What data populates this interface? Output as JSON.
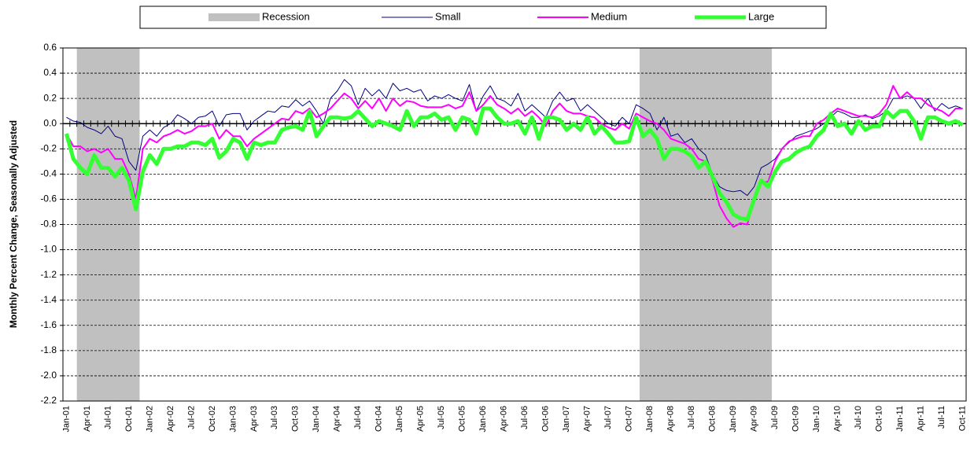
{
  "chart_data": {
    "type": "line",
    "ylabel": "Monthly Percent Change, Seasonally Adjusted",
    "categories": [
      "Jan-01",
      null,
      null,
      "Apr-01",
      null,
      null,
      "Jul-01",
      null,
      null,
      "Oct-01",
      null,
      null,
      "Jan-02",
      null,
      null,
      "Apr-02",
      null,
      null,
      "Jul-02",
      null,
      null,
      "Oct-02",
      null,
      null,
      "Jan-03",
      null,
      null,
      "Apr-03",
      null,
      null,
      "Jul-03",
      null,
      null,
      "Oct-03",
      null,
      null,
      "Jan-04",
      null,
      null,
      "Apr-04",
      null,
      null,
      "Jul-04",
      null,
      null,
      "Oct-04",
      null,
      null,
      "Jan-05",
      null,
      null,
      "Apr-05",
      null,
      null,
      "Jul-05",
      null,
      null,
      "Oct-05",
      null,
      null,
      "Jan-06",
      null,
      null,
      "Apr-06",
      null,
      null,
      "Jul-06",
      null,
      null,
      "Oct-06",
      null,
      null,
      "Jan-07",
      null,
      null,
      "Apr-07",
      null,
      null,
      "Jul-07",
      null,
      null,
      "Oct-07",
      null,
      null,
      "Jan-08",
      null,
      null,
      "Apr-08",
      null,
      null,
      "Jul-08",
      null,
      null,
      "Oct-08",
      null,
      null,
      "Jan-09",
      null,
      null,
      "Apr-09",
      null,
      null,
      "Jul-09",
      null,
      null,
      "Oct-09",
      null,
      null,
      "Jan-10",
      null,
      null,
      "Apr-10",
      null,
      null,
      "Jul-10",
      null,
      null,
      "Oct-10",
      null,
      null,
      "Jan-11",
      null,
      null,
      "Apr-11",
      null,
      null,
      "Jul-11",
      null,
      null,
      "Oct-11"
    ],
    "series": [
      {
        "name": "Recession",
        "type": "bar",
        "color": "#c0c0c0",
        "values": [
          null,
          null,
          0.6,
          0.6,
          0.6,
          0.6,
          0.6,
          0.6,
          0.6,
          0.6,
          0.6,
          null,
          null,
          null,
          null,
          null,
          null,
          null,
          null,
          null,
          null,
          null,
          null,
          null,
          null,
          null,
          null,
          null,
          null,
          null,
          null,
          null,
          null,
          null,
          null,
          null,
          null,
          null,
          null,
          null,
          null,
          null,
          null,
          null,
          null,
          null,
          null,
          null,
          null,
          null,
          null,
          null,
          null,
          null,
          null,
          null,
          null,
          null,
          null,
          null,
          null,
          null,
          null,
          null,
          null,
          null,
          null,
          null,
          null,
          null,
          null,
          null,
          null,
          null,
          null,
          null,
          null,
          null,
          null,
          null,
          null,
          null,
          null,
          0.6,
          0.6,
          0.6,
          0.6,
          0.6,
          0.6,
          0.6,
          0.6,
          0.6,
          0.6,
          0.6,
          0.6,
          0.6,
          0.6,
          0.6,
          0.6,
          0.6,
          0.6,
          0.6,
          null,
          null,
          null,
          null,
          null,
          null,
          null,
          null,
          null,
          null,
          null,
          null,
          null,
          null,
          null,
          null,
          null,
          null,
          null,
          null,
          null,
          null,
          null,
          null,
          null,
          null,
          null,
          null
        ]
      },
      {
        "name": "Small",
        "type": "line",
        "color": "#000080",
        "width": 1,
        "values": [
          0.05,
          0.02,
          0.01,
          -0.03,
          -0.05,
          -0.08,
          -0.02,
          -0.1,
          -0.12,
          -0.3,
          -0.37,
          -0.1,
          -0.05,
          -0.1,
          -0.03,
          0.0,
          0.07,
          0.04,
          0.0,
          0.05,
          0.06,
          0.1,
          -0.02,
          0.07,
          0.08,
          0.08,
          -0.05,
          0.02,
          0.06,
          0.1,
          0.09,
          0.14,
          0.13,
          0.19,
          0.14,
          0.18,
          0.1,
          0.0,
          0.2,
          0.26,
          0.35,
          0.3,
          0.15,
          0.28,
          0.22,
          0.27,
          0.2,
          0.32,
          0.26,
          0.28,
          0.25,
          0.27,
          0.18,
          0.22,
          0.2,
          0.23,
          0.2,
          0.18,
          0.31,
          0.1,
          0.22,
          0.3,
          0.2,
          0.18,
          0.14,
          0.24,
          0.1,
          0.15,
          0.1,
          0.05,
          0.18,
          0.25,
          0.18,
          0.2,
          0.1,
          0.15,
          0.1,
          0.05,
          0.0,
          -0.02,
          0.05,
          0.0,
          0.15,
          0.12,
          0.08,
          -0.05,
          0.05,
          -0.1,
          -0.08,
          -0.15,
          -0.12,
          -0.2,
          -0.25,
          -0.4,
          -0.5,
          -0.53,
          -0.54,
          -0.53,
          -0.57,
          -0.5,
          -0.35,
          -0.32,
          -0.28,
          -0.2,
          -0.15,
          -0.1,
          -0.08,
          -0.06,
          -0.04,
          0.0,
          0.05,
          0.1,
          0.08,
          0.05,
          0.05,
          0.07,
          0.04,
          0.06,
          0.1,
          0.2,
          0.2,
          0.22,
          0.2,
          0.12,
          0.2,
          0.1,
          0.16,
          0.12,
          0.14,
          0.12
        ]
      },
      {
        "name": "Medium",
        "type": "line",
        "color": "#ff00ff",
        "width": 2,
        "values": [
          -0.08,
          -0.18,
          -0.18,
          -0.22,
          -0.2,
          -0.23,
          -0.2,
          -0.28,
          -0.28,
          -0.4,
          -0.6,
          -0.2,
          -0.12,
          -0.15,
          -0.1,
          -0.08,
          -0.05,
          -0.08,
          -0.06,
          -0.02,
          -0.02,
          0.0,
          -0.12,
          -0.05,
          -0.1,
          -0.1,
          -0.18,
          -0.12,
          -0.08,
          -0.04,
          0.0,
          0.04,
          0.03,
          0.1,
          0.08,
          0.12,
          0.05,
          0.08,
          0.12,
          0.18,
          0.24,
          0.2,
          0.12,
          0.18,
          0.12,
          0.2,
          0.1,
          0.2,
          0.14,
          0.18,
          0.17,
          0.14,
          0.13,
          0.13,
          0.13,
          0.15,
          0.12,
          0.14,
          0.25,
          0.1,
          0.15,
          0.22,
          0.15,
          0.12,
          0.08,
          0.12,
          0.06,
          0.1,
          0.05,
          -0.02,
          0.1,
          0.16,
          0.1,
          0.08,
          0.08,
          0.06,
          0.05,
          0.0,
          -0.03,
          -0.05,
          0.0,
          -0.04,
          0.08,
          0.05,
          0.02,
          0.0,
          -0.05,
          -0.12,
          -0.14,
          -0.16,
          -0.2,
          -0.28,
          -0.3,
          -0.45,
          -0.65,
          -0.75,
          -0.82,
          -0.79,
          -0.8,
          -0.6,
          -0.47,
          -0.46,
          -0.3,
          -0.2,
          -0.14,
          -0.12,
          -0.1,
          -0.1,
          0.0,
          0.03,
          0.08,
          0.12,
          0.1,
          0.08,
          0.06,
          0.06,
          0.05,
          0.08,
          0.15,
          0.3,
          0.2,
          0.25,
          0.2,
          0.2,
          0.15,
          0.12,
          0.1,
          0.06,
          0.12,
          0.12
        ]
      },
      {
        "name": "Large",
        "type": "line",
        "color": "#33ff33",
        "width": 5,
        "values": [
          -0.08,
          -0.28,
          -0.35,
          -0.4,
          -0.25,
          -0.35,
          -0.35,
          -0.42,
          -0.35,
          -0.45,
          -0.68,
          -0.38,
          -0.25,
          -0.32,
          -0.2,
          -0.2,
          -0.18,
          -0.18,
          -0.15,
          -0.15,
          -0.17,
          -0.12,
          -0.27,
          -0.22,
          -0.12,
          -0.15,
          -0.28,
          -0.15,
          -0.17,
          -0.15,
          -0.15,
          -0.05,
          -0.03,
          -0.02,
          -0.05,
          0.1,
          -0.1,
          -0.02,
          0.05,
          0.05,
          0.04,
          0.05,
          0.1,
          0.04,
          -0.02,
          0.02,
          0.0,
          -0.02,
          -0.05,
          0.1,
          -0.02,
          0.05,
          0.05,
          0.08,
          0.03,
          0.05,
          -0.05,
          0.05,
          0.03,
          -0.08,
          0.12,
          0.12,
          0.05,
          0.0,
          0.0,
          0.02,
          -0.08,
          0.05,
          -0.12,
          0.05,
          0.05,
          0.03,
          -0.05,
          0.0,
          -0.05,
          0.05,
          -0.08,
          -0.02,
          -0.08,
          -0.15,
          -0.15,
          -0.14,
          0.05,
          -0.1,
          -0.05,
          -0.12,
          -0.28,
          -0.2,
          -0.2,
          -0.22,
          -0.26,
          -0.35,
          -0.3,
          -0.42,
          -0.55,
          -0.62,
          -0.72,
          -0.75,
          -0.76,
          -0.6,
          -0.45,
          -0.5,
          -0.38,
          -0.3,
          -0.28,
          -0.23,
          -0.2,
          -0.18,
          -0.1,
          -0.05,
          0.08,
          -0.02,
          0.0,
          -0.08,
          0.02,
          -0.05,
          -0.02,
          -0.02,
          0.1,
          0.05,
          0.1,
          0.1,
          0.02,
          -0.12,
          0.05,
          0.05,
          0.02,
          0.0,
          0.02,
          -0.01
        ]
      }
    ],
    "ylim": [
      -2.2,
      0.6
    ],
    "yticks": [
      0.6,
      0.4,
      0.2,
      {
        "value": 0,
        "label": "0.0"
      },
      -0.2,
      -0.4,
      -0.6,
      -0.8,
      {
        "value": -1,
        "label": "-1.0"
      },
      -1.2,
      -1.4,
      -1.6,
      -1.8,
      {
        "value": -2,
        "label": "-2.0"
      },
      -2.2
    ],
    "grid": true,
    "legend": "top"
  }
}
